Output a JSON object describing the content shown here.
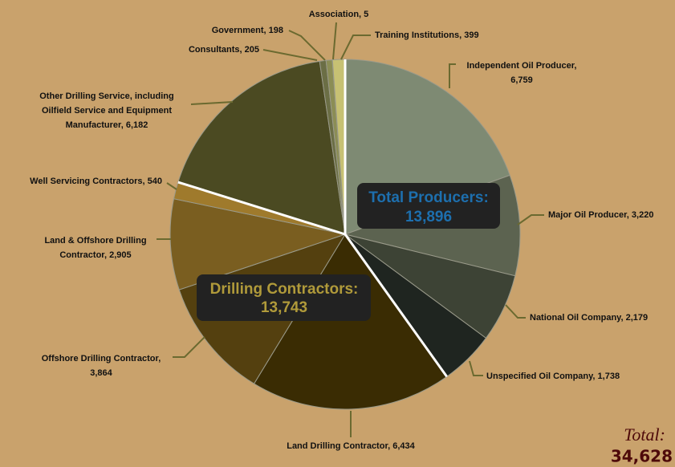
{
  "chart_data": {
    "type": "pie",
    "categories": [
      "Independent Oil Producer, 6,759",
      "Major Oil Producer, 3,220",
      "National Oil Company, 2,179",
      "Unspecified Oil Company, 1,738",
      "Land Drilling Contractor, 6,434",
      "Offshore Drilling Contractor, 3,864",
      "Land & Offshore Drilling Contractor, 2,905",
      "Well Servicing Contractors, 540",
      "Other Drilling Service, including Oilfield Service and Equipment Manufacturer, 6,182",
      "Consultants, 205",
      "Government, 198",
      "Association, 5",
      "Training Institutions, 399"
    ],
    "values": [
      6759,
      3220,
      2179,
      1738,
      6434,
      3864,
      2905,
      540,
      6182,
      205,
      198,
      5,
      399
    ],
    "colors": [
      "#7e8a73",
      "#5c6350",
      "#3d4335",
      "#1f2520",
      "#3a2c03",
      "#54400f",
      "#7a5e20",
      "#9f7a2c",
      "#4b4a22",
      "#6b6e45",
      "#8b8d55",
      "#b0a860",
      "#c7c173"
    ],
    "annotations": [
      {
        "label": "Total Producers:",
        "value": "13,896"
      },
      {
        "label": "Drilling Contractors:",
        "value": "13,743"
      },
      {
        "label": "Total:",
        "value": "34,628"
      }
    ]
  }
}
